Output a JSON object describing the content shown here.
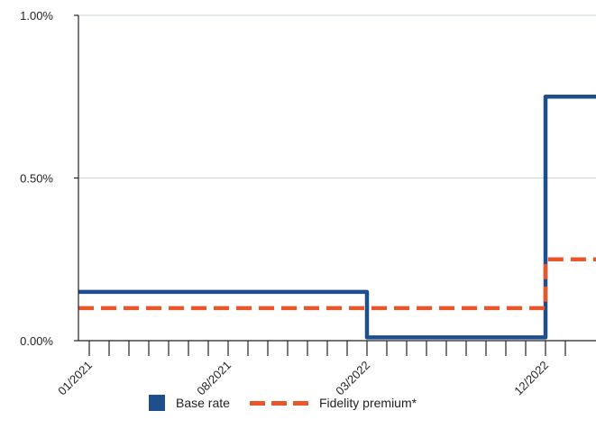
{
  "chart_data": {
    "type": "line",
    "step": true,
    "x_axis": {
      "labels": [
        "01/2021",
        "08/2021",
        "03/2022",
        "12/2022"
      ],
      "minor_ticks": [
        "01/2021",
        "02/2021",
        "03/2021",
        "04/2021",
        "05/2021",
        "06/2021",
        "07/2021",
        "08/2021",
        "09/2021",
        "10/2021",
        "11/2021",
        "12/2021",
        "01/2022",
        "02/2022",
        "03/2022",
        "04/2022",
        "05/2022",
        "06/2022",
        "07/2022",
        "08/2022",
        "09/2022",
        "10/2022",
        "11/2022",
        "12/2022",
        "01/2023"
      ]
    },
    "y_axis": {
      "ticks": [
        {
          "value": 0.0,
          "label": "0.00%"
        },
        {
          "value": 0.5,
          "label": "0.50%"
        },
        {
          "value": 1.0,
          "label": "1.00%"
        }
      ],
      "ylim": [
        0,
        1.0
      ],
      "grid": true
    },
    "series": [
      {
        "name": "Base rate",
        "color": "#1f4e8c",
        "style": "solid",
        "points": [
          {
            "x": "01/2021",
            "y": 0.15
          },
          {
            "x": "03/2022",
            "y": 0.01
          },
          {
            "x": "12/2022",
            "y": 0.75
          },
          {
            "x": "01/2023",
            "y": 0.75
          }
        ]
      },
      {
        "name": "Fidelity premium*",
        "color": "#e8562a",
        "style": "dashed",
        "points": [
          {
            "x": "01/2021",
            "y": 0.1
          },
          {
            "x": "12/2022",
            "y": 0.25
          },
          {
            "x": "01/2023",
            "y": 0.25
          }
        ]
      }
    ],
    "legend": {
      "position": "bottom"
    }
  }
}
